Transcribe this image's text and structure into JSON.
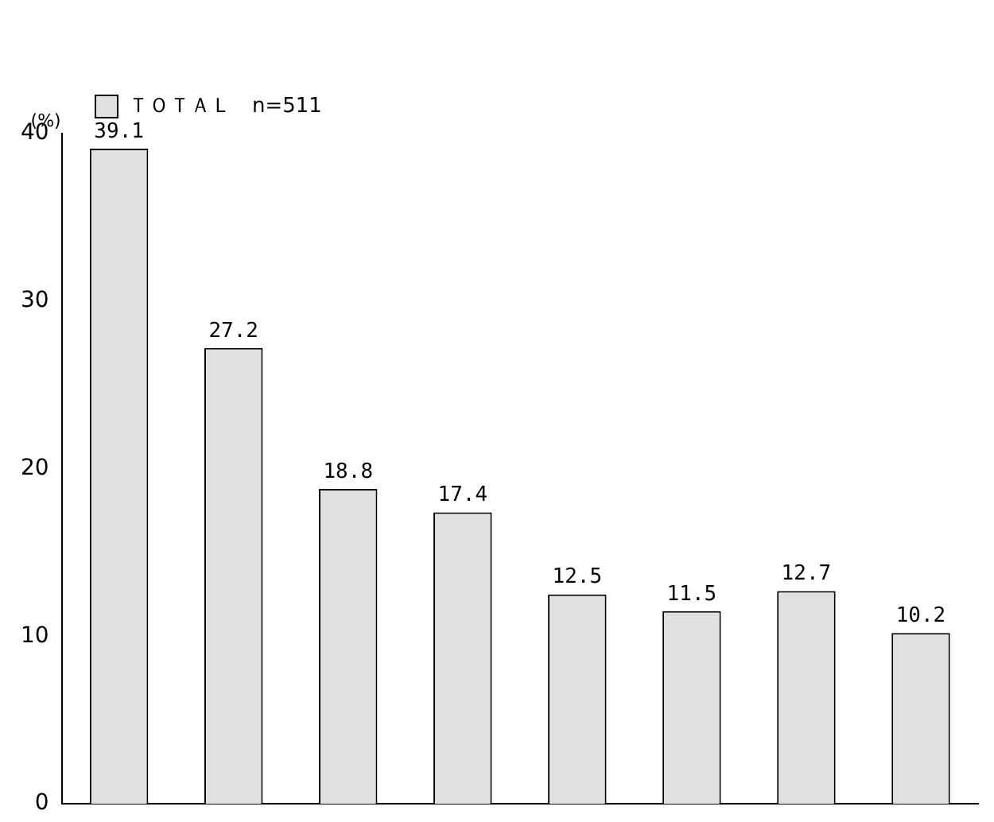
{
  "chart_data": {
    "type": "bar",
    "ylabel": "(%)",
    "categories": [
      null,
      null,
      null,
      null,
      null,
      null,
      null,
      null
    ],
    "series": [
      {
        "name": "ＴＯＴＡＬ　n=511",
        "color": "#e0e0e0",
        "values": [
          39.1,
          27.2,
          18.8,
          17.4,
          12.5,
          11.5,
          12.7,
          10.2
        ]
      }
    ],
    "ylim": [
      0,
      40
    ],
    "yticks": [
      0,
      10,
      20,
      30,
      40
    ],
    "grid": false,
    "legend": "top left",
    "data_labels": true
  }
}
